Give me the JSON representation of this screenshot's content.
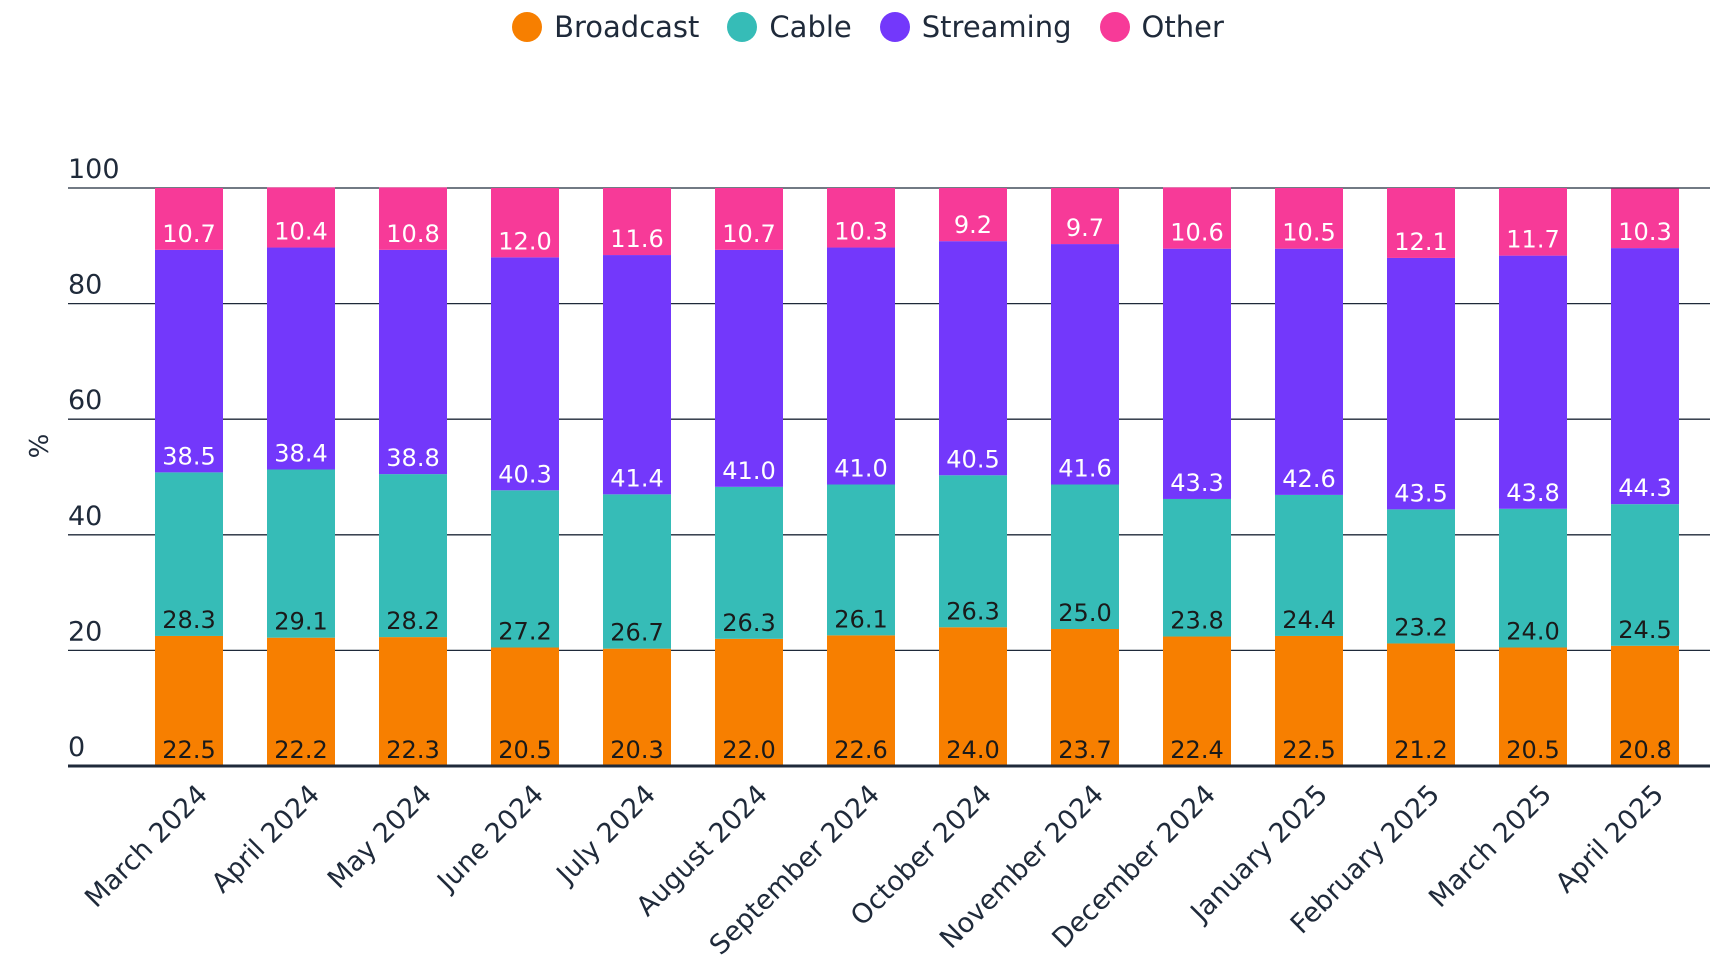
{
  "chart_data": {
    "type": "bar",
    "stacked": true,
    "title": "",
    "xlabel": "",
    "ylabel": "%",
    "ylim": [
      0,
      100
    ],
    "yticks": [
      0,
      20,
      40,
      60,
      80,
      100
    ],
    "grid": true,
    "legend_position": "top-center",
    "categories": [
      "March 2024",
      "April 2024",
      "May 2024",
      "June 2024",
      "July 2024",
      "August 2024",
      "September 2024",
      "October 2024",
      "November 2024",
      "December 2024",
      "January 2025",
      "February 2025",
      "March 2025",
      "April 2025"
    ],
    "series": [
      {
        "name": "Broadcast",
        "color": "#f77f00",
        "label_color": "#1a1a1a",
        "values": [
          22.5,
          22.2,
          22.3,
          20.5,
          20.3,
          22.0,
          22.6,
          24.0,
          23.7,
          22.4,
          22.5,
          21.2,
          20.5,
          20.8
        ]
      },
      {
        "name": "Cable",
        "color": "#36bcb7",
        "label_color": "#1a1a1a",
        "values": [
          28.3,
          29.1,
          28.2,
          27.2,
          26.7,
          26.3,
          26.1,
          26.3,
          25.0,
          23.8,
          24.4,
          23.2,
          24.0,
          24.5
        ]
      },
      {
        "name": "Streaming",
        "color": "#7338fb",
        "label_color": "#ffffff",
        "values": [
          38.5,
          38.4,
          38.8,
          40.3,
          41.4,
          41.0,
          41.0,
          40.5,
          41.6,
          43.3,
          42.6,
          43.5,
          43.8,
          44.3
        ]
      },
      {
        "name": "Other",
        "color": "#f73a98",
        "label_color": "#ffffff",
        "values": [
          10.7,
          10.4,
          10.8,
          12.0,
          11.6,
          10.7,
          10.3,
          9.2,
          9.7,
          10.6,
          10.5,
          12.1,
          11.7,
          10.3
        ]
      }
    ]
  }
}
